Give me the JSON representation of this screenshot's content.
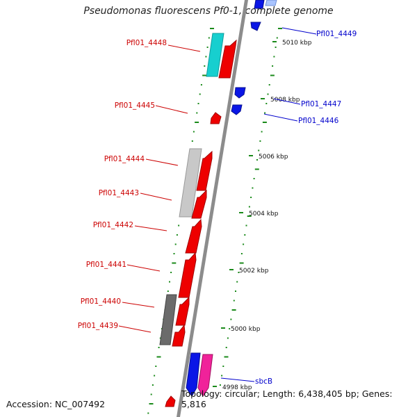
{
  "title": "Pseudomonas fluorescens Pf0-1, complete genome",
  "accession": "Accession: NC_007492",
  "topology": "Topology: circular; Length: 6,438,405 bp; Genes: 5,816",
  "colors": {
    "left_labels": "#cc0000",
    "right_labels": "#0000cc",
    "axis": "#8c8c8c",
    "ticks": "#1a8a1a",
    "red_gene": "#ee0000",
    "blue_gene": "#0a16e6",
    "cyan_gene": "#17cfcf",
    "light_gray": "#c8c8c8",
    "dark_gray": "#6b6b6b",
    "pink_gene": "#f0229a",
    "light_blue": "#a9c4ff"
  },
  "kbp_ticks": [
    "4998 kbp",
    "5000 kbp",
    "5002 kbp",
    "5004 kbp",
    "5006 kbp",
    "5008 kbp",
    "5010 kbp"
  ],
  "left_gene_labels": [
    "Pfl01_4448",
    "Pfl01_4445",
    "Pfl01_4444",
    "Pfl01_4443",
    "Pfl01_4442",
    "Pfl01_4441",
    "Pfl01_4440",
    "Pfl01_4439"
  ],
  "right_gene_labels": [
    "Pfl01_4449",
    "Pfl01_4447",
    "Pfl01_4446",
    "sbcB"
  ]
}
